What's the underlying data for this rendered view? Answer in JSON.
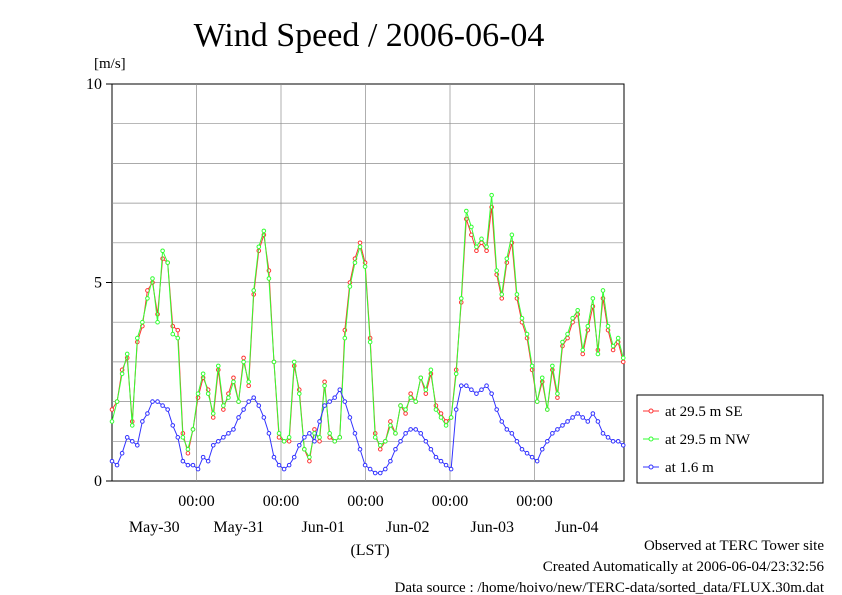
{
  "chart_data": {
    "type": "line",
    "title": "Wind Speed / 2006-06-04",
    "ylabel": "[m/s]",
    "xlabel": "(LST)",
    "ylim": [
      0,
      10
    ],
    "yticks": [
      "0",
      "5",
      "10"
    ],
    "time_ticks": [
      "00:00",
      "00:00",
      "00:00",
      "00:00",
      "00:00"
    ],
    "date_ticks": [
      "May-30",
      "May-31",
      "Jun-01",
      "Jun-02",
      "Jun-03",
      "Jun-04"
    ],
    "grid": true,
    "legend_position": "right",
    "series": [
      {
        "name": "at 29.5 m SE",
        "color": "#ff3333",
        "values": [
          1.8,
          2.0,
          2.8,
          3.1,
          1.5,
          3.5,
          3.9,
          4.8,
          5.0,
          4.2,
          5.6,
          5.5,
          3.9,
          3.8,
          1.2,
          0.7,
          1.3,
          2.1,
          2.6,
          2.3,
          1.6,
          2.8,
          1.8,
          2.2,
          2.6,
          2.0,
          3.1,
          2.4,
          4.7,
          5.8,
          6.2,
          5.3,
          3.0,
          1.1,
          1.0,
          1.0,
          2.9,
          2.3,
          0.8,
          0.5,
          1.3,
          1.0,
          2.5,
          1.1,
          1.0,
          1.1,
          3.8,
          5.0,
          5.6,
          6.0,
          5.5,
          3.6,
          1.2,
          0.8,
          1.0,
          1.5,
          1.2,
          1.9,
          1.7,
          2.2,
          2.0,
          2.6,
          2.2,
          2.7,
          1.9,
          1.7,
          1.5,
          1.6,
          2.8,
          4.5,
          6.6,
          6.2,
          5.8,
          6.0,
          5.8,
          6.9,
          5.2,
          4.6,
          5.5,
          6.0,
          4.6,
          4.0,
          3.6,
          2.8,
          2.0,
          2.5,
          1.8,
          2.8,
          2.1,
          3.4,
          3.6,
          4.0,
          4.2,
          3.2,
          3.8,
          4.4,
          3.3,
          4.6,
          3.8,
          3.3,
          3.5,
          3.0
        ],
        "start_x": 0.0,
        "end_x": 6.05
      },
      {
        "name": "at 29.5 m NW",
        "color": "#33ff33",
        "values": [
          1.5,
          2.0,
          2.7,
          3.2,
          1.4,
          3.6,
          4.0,
          4.6,
          5.1,
          4.0,
          5.8,
          5.5,
          3.7,
          3.6,
          1.1,
          0.8,
          1.3,
          2.2,
          2.7,
          2.2,
          1.7,
          2.9,
          1.9,
          2.1,
          2.5,
          2.0,
          3.0,
          2.5,
          4.8,
          5.9,
          6.3,
          5.1,
          3.0,
          1.2,
          1.0,
          1.1,
          3.0,
          2.2,
          0.8,
          0.6,
          1.2,
          1.1,
          2.4,
          1.2,
          1.0,
          1.1,
          3.6,
          4.9,
          5.5,
          5.9,
          5.4,
          3.5,
          1.1,
          0.9,
          1.0,
          1.4,
          1.2,
          1.9,
          1.8,
          2.1,
          2.0,
          2.6,
          2.3,
          2.8,
          1.8,
          1.6,
          1.4,
          1.6,
          2.7,
          4.6,
          6.8,
          6.4,
          5.9,
          6.1,
          5.9,
          7.2,
          5.3,
          4.7,
          5.6,
          6.2,
          4.7,
          4.1,
          3.7,
          2.9,
          2.0,
          2.6,
          1.8,
          2.9,
          2.2,
          3.5,
          3.7,
          4.1,
          4.3,
          3.3,
          3.9,
          4.6,
          3.2,
          4.8,
          3.9,
          3.4,
          3.6,
          3.1
        ],
        "start_x": 0.0,
        "end_x": 6.05
      },
      {
        "name": "at 1.6 m",
        "color": "#3333ff",
        "values": [
          0.5,
          0.4,
          0.7,
          1.1,
          1.0,
          0.9,
          1.5,
          1.7,
          2.0,
          2.0,
          1.9,
          1.8,
          1.4,
          1.1,
          0.5,
          0.4,
          0.4,
          0.3,
          0.6,
          0.5,
          0.9,
          1.0,
          1.1,
          1.2,
          1.3,
          1.6,
          1.8,
          2.0,
          2.1,
          1.9,
          1.6,
          1.2,
          0.6,
          0.4,
          0.3,
          0.4,
          0.6,
          0.9,
          1.1,
          1.2,
          1.0,
          1.5,
          1.9,
          2.0,
          2.1,
          2.3,
          2.0,
          1.6,
          1.2,
          0.8,
          0.4,
          0.3,
          0.2,
          0.2,
          0.3,
          0.5,
          0.8,
          1.0,
          1.2,
          1.3,
          1.3,
          1.2,
          1.0,
          0.8,
          0.6,
          0.5,
          0.4,
          0.3,
          1.8,
          2.4,
          2.4,
          2.3,
          2.2,
          2.3,
          2.4,
          2.2,
          1.8,
          1.5,
          1.3,
          1.2,
          1.0,
          0.8,
          0.7,
          0.6,
          0.5,
          0.8,
          1.0,
          1.2,
          1.3,
          1.4,
          1.5,
          1.6,
          1.7,
          1.6,
          1.5,
          1.7,
          1.5,
          1.2,
          1.1,
          1.0,
          1.0,
          0.9
        ],
        "start_x": 0.0,
        "end_x": 6.05
      }
    ]
  },
  "footer": {
    "observed": "Observed at TERC Tower site",
    "created": "Created Automatically at 2006-06-04/23:32:56",
    "source": "Data source : /home/hoivo/new/TERC-data/sorted_data/FLUX.30m.dat"
  }
}
